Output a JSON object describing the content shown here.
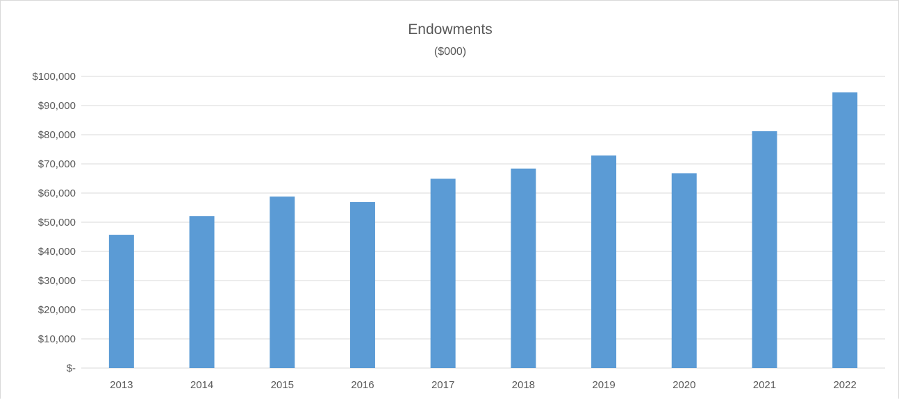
{
  "chart_data": {
    "type": "bar",
    "title": "Endowments",
    "subtitle": "($000)",
    "xlabel": "",
    "ylabel": "",
    "categories": [
      "2013",
      "2014",
      "2015",
      "2016",
      "2017",
      "2018",
      "2019",
      "2020",
      "2021",
      "2022"
    ],
    "values": [
      45700,
      52100,
      58800,
      56900,
      64900,
      68400,
      72900,
      66800,
      81200,
      94500
    ],
    "ylim": [
      0,
      100000
    ],
    "yticks": [
      0,
      10000,
      20000,
      30000,
      40000,
      50000,
      60000,
      70000,
      80000,
      90000,
      100000
    ],
    "ytick_labels": [
      "$-",
      "$10,000",
      "$20,000",
      "$30,000",
      "$40,000",
      "$50,000",
      "$60,000",
      "$70,000",
      "$80,000",
      "$90,000",
      "$100,000"
    ],
    "grid": true,
    "legend": "none",
    "bar_color": "#5b9bd5",
    "gridline_color": "#d9d9d9",
    "text_color": "#595959"
  }
}
